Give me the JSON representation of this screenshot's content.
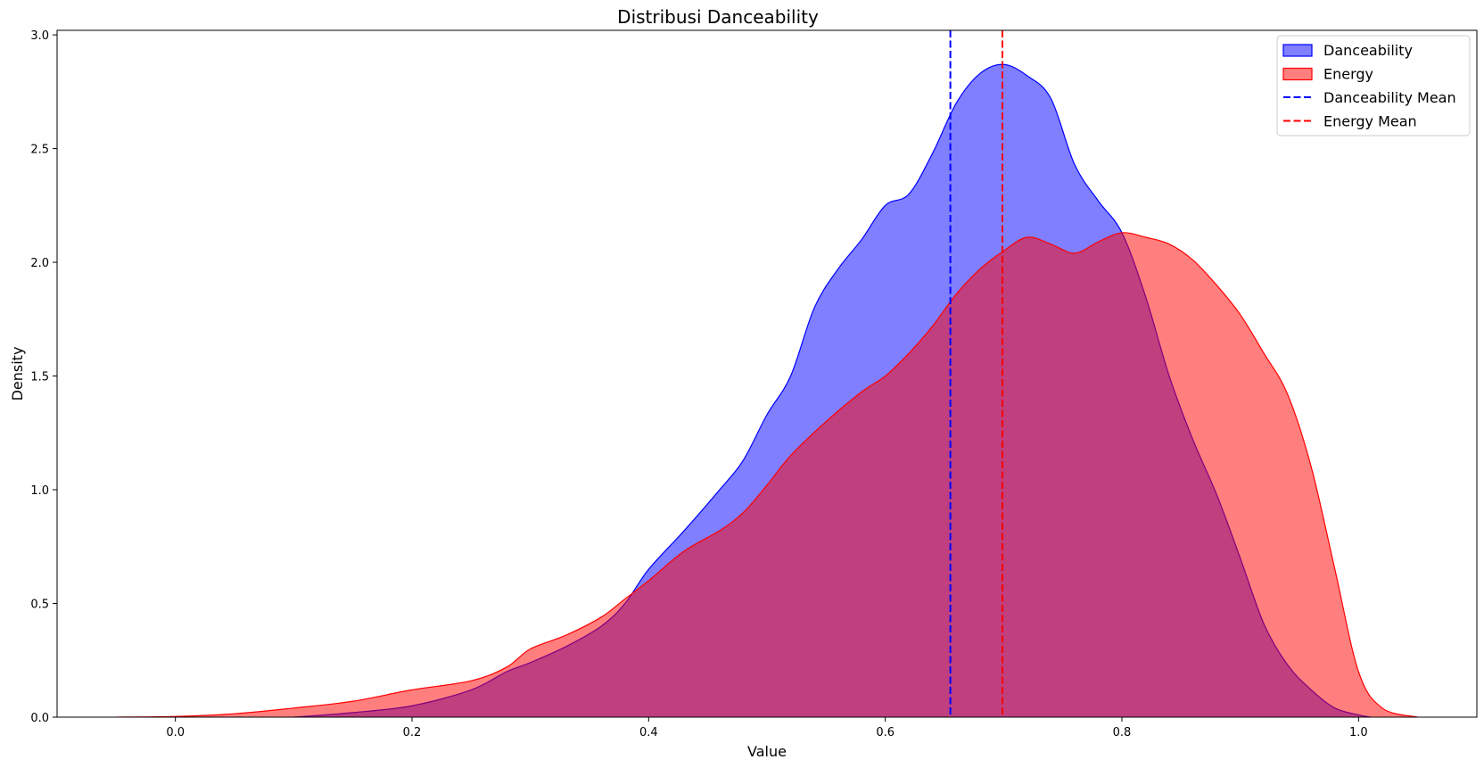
{
  "chart_data": {
    "type": "area",
    "title": "Distribusi Danceability",
    "xlabel": "Value",
    "ylabel": "Density",
    "xlim": [
      -0.1,
      1.1
    ],
    "ylim": [
      0,
      3.02
    ],
    "xticks": [
      0.0,
      0.2,
      0.4,
      0.6,
      0.8,
      1.0
    ],
    "xtick_labels": [
      "0.0",
      "0.2",
      "0.4",
      "0.6",
      "0.8",
      "1.0"
    ],
    "yticks": [
      0.0,
      0.5,
      1.0,
      1.5,
      2.0,
      2.5,
      3.0
    ],
    "ytick_labels": [
      "0.0",
      "0.5",
      "1.0",
      "1.5",
      "2.0",
      "2.5",
      "3.0"
    ],
    "grid": false,
    "legend_position": "top-right",
    "series": [
      {
        "name": "Danceability",
        "kind": "density",
        "color": "#0000ff",
        "fill": "#0000ff",
        "fill_opacity": 0.5,
        "x": [
          0.1,
          0.15,
          0.2,
          0.25,
          0.28,
          0.3,
          0.33,
          0.36,
          0.38,
          0.4,
          0.43,
          0.46,
          0.48,
          0.5,
          0.52,
          0.54,
          0.56,
          0.58,
          0.6,
          0.62,
          0.64,
          0.66,
          0.68,
          0.7,
          0.72,
          0.74,
          0.76,
          0.78,
          0.8,
          0.82,
          0.84,
          0.86,
          0.88,
          0.9,
          0.92,
          0.94,
          0.96,
          0.98,
          1.0,
          1.01
        ],
        "y": [
          0.0,
          0.02,
          0.05,
          0.12,
          0.2,
          0.24,
          0.31,
          0.4,
          0.5,
          0.65,
          0.82,
          1.0,
          1.13,
          1.33,
          1.5,
          1.8,
          1.97,
          2.1,
          2.25,
          2.3,
          2.48,
          2.7,
          2.83,
          2.87,
          2.82,
          2.72,
          2.43,
          2.27,
          2.13,
          1.85,
          1.5,
          1.22,
          0.98,
          0.7,
          0.41,
          0.23,
          0.12,
          0.04,
          0.01,
          0.0
        ]
      },
      {
        "name": "Energy",
        "kind": "density",
        "color": "#ff0000",
        "fill": "#ff0000",
        "fill_opacity": 0.5,
        "x": [
          -0.05,
          0.0,
          0.05,
          0.1,
          0.15,
          0.2,
          0.25,
          0.28,
          0.3,
          0.33,
          0.36,
          0.38,
          0.4,
          0.43,
          0.46,
          0.48,
          0.5,
          0.52,
          0.55,
          0.58,
          0.6,
          0.62,
          0.64,
          0.66,
          0.68,
          0.7,
          0.72,
          0.74,
          0.76,
          0.78,
          0.8,
          0.82,
          0.84,
          0.86,
          0.88,
          0.9,
          0.92,
          0.94,
          0.96,
          0.98,
          1.0,
          1.02,
          1.05
        ],
        "y": [
          0.0,
          0.003,
          0.015,
          0.04,
          0.07,
          0.12,
          0.16,
          0.22,
          0.3,
          0.36,
          0.44,
          0.52,
          0.6,
          0.73,
          0.82,
          0.9,
          1.02,
          1.15,
          1.3,
          1.43,
          1.5,
          1.6,
          1.72,
          1.86,
          1.97,
          2.05,
          2.11,
          2.08,
          2.04,
          2.09,
          2.13,
          2.11,
          2.08,
          2.01,
          1.9,
          1.77,
          1.6,
          1.42,
          1.1,
          0.65,
          0.2,
          0.04,
          0.0
        ]
      },
      {
        "name": "Danceability Mean",
        "kind": "vline",
        "color": "#0000ff",
        "dashed": true,
        "x_value": 0.655
      },
      {
        "name": "Energy Mean",
        "kind": "vline",
        "color": "#ff0000",
        "dashed": true,
        "x_value": 0.699
      }
    ]
  }
}
